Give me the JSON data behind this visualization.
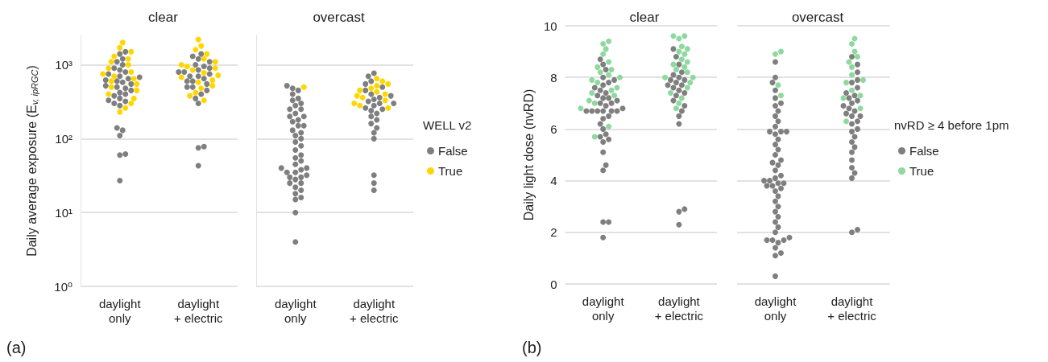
{
  "chart_data": [
    {
      "type": "scatter",
      "title": "clear",
      "ylabel": "Daily average exposure (E$_{v, ipRGC}$)",
      "categories": [
        "daylight\nonly",
        "daylight\n+ electric"
      ],
      "log": "y",
      "ylim": [
        1,
        2500
      ],
      "yticks": [
        {
          "value": 1,
          "label": "10⁰"
        },
        {
          "value": 10,
          "label": "10¹"
        },
        {
          "value": 100,
          "label": "10²"
        },
        {
          "value": 1000,
          "label": "10³"
        }
      ],
      "grid": "y",
      "marker": "circle",
      "annotations": [
        "(a)"
      ],
      "series": [
        {
          "color": "#7f7f7f",
          "x": [
            "daylight\nonly",
            "daylight\nonly",
            "daylight\nonly",
            "daylight\nonly",
            "daylight\nonly",
            "daylight\nonly",
            "daylight\nonly",
            "daylight\nonly",
            "daylight\nonly",
            "daylight\nonly",
            "daylight\nonly",
            "daylight\nonly",
            "daylight\nonly",
            "daylight\nonly",
            "daylight\nonly",
            "daylight\nonly",
            "daylight\nonly",
            "daylight\nonly",
            "daylight\nonly",
            "daylight\nonly",
            "daylight\nonly",
            "daylight\nonly",
            "daylight\nonly",
            "daylight\nonly",
            "daylight\nonly",
            "daylight\nonly",
            "daylight\nonly",
            "daylight\nonly",
            "daylight\nonly",
            "daylight\nonly",
            "daylight\nonly",
            "daylight\nonly",
            "daylight\nonly",
            "daylight\nonly",
            "daylight\n+ electric",
            "daylight\n+ electric",
            "daylight\n+ electric",
            "daylight\n+ electric",
            "daylight\n+ electric",
            "daylight\n+ electric",
            "daylight\n+ electric",
            "daylight\n+ electric",
            "daylight\n+ electric",
            "daylight\n+ electric",
            "daylight\n+ electric",
            "daylight\n+ electric",
            "daylight\n+ electric",
            "daylight\n+ electric",
            "daylight\n+ electric",
            "daylight\n+ electric",
            "daylight\n+ electric",
            "daylight\n+ electric",
            "daylight\n+ electric",
            "daylight\n+ electric",
            "daylight\n+ electric",
            "daylight\n+ electric",
            "daylight\n+ electric",
            "daylight\n+ electric",
            "daylight\n+ electric",
            "daylight\n+ electric"
          ],
          "values": [
            27,
            60,
            62,
            110,
            130,
            140,
            280,
            300,
            320,
            330,
            350,
            380,
            400,
            420,
            450,
            480,
            500,
            520,
            550,
            580,
            600,
            620,
            650,
            680,
            700,
            750,
            800,
            850,
            900,
            1000,
            1100,
            1200,
            1400,
            1500,
            43,
            75,
            78,
            300,
            350,
            400,
            450,
            500,
            550,
            600,
            650,
            700,
            750,
            800,
            850,
            900,
            950,
            1000,
            1100,
            1200,
            1300,
            1400,
            500,
            600,
            700,
            800
          ]
        },
        {
          "color": "#ffd700",
          "x": [
            "daylight\nonly",
            "daylight\nonly",
            "daylight\nonly",
            "daylight\nonly",
            "daylight\nonly",
            "daylight\nonly",
            "daylight\nonly",
            "daylight\nonly",
            "daylight\nonly",
            "daylight\nonly",
            "daylight\nonly",
            "daylight\nonly",
            "daylight\nonly",
            "daylight\nonly",
            "daylight\nonly",
            "daylight\nonly",
            "daylight\nonly",
            "daylight\nonly",
            "daylight\nonly",
            "daylight\nonly",
            "daylight\nonly",
            "daylight\n+ electric",
            "daylight\n+ electric",
            "daylight\n+ electric",
            "daylight\n+ electric",
            "daylight\n+ electric",
            "daylight\n+ electric",
            "daylight\n+ electric",
            "daylight\n+ electric",
            "daylight\n+ electric",
            "daylight\n+ electric",
            "daylight\n+ electric",
            "daylight\n+ electric",
            "daylight\n+ electric",
            "daylight\n+ electric",
            "daylight\n+ electric",
            "daylight\n+ electric",
            "daylight\n+ electric",
            "daylight\n+ electric",
            "daylight\n+ electric",
            "daylight\n+ electric"
          ],
          "values": [
            230,
            260,
            300,
            350,
            400,
            450,
            500,
            550,
            600,
            650,
            700,
            750,
            800,
            900,
            1000,
            1100,
            1200,
            1300,
            1500,
            1700,
            2000,
            330,
            380,
            420,
            480,
            520,
            580,
            620,
            680,
            720,
            780,
            850,
            900,
            950,
            1000,
            1100,
            1200,
            1400,
            1600,
            1800,
            2200
          ]
        }
      ]
    },
    {
      "type": "scatter",
      "title": "overcast",
      "categories": [
        "daylight\nonly",
        "daylight\n+ electric"
      ],
      "log": "y",
      "ylim": [
        1,
        2500
      ],
      "yticks": [
        1,
        10,
        100,
        1000
      ],
      "grid": "y",
      "marker": "circle",
      "tick_labels": "x",
      "legend": "right",
      "legend_title": "WELL v2",
      "series": [
        {
          "name": "False",
          "color": "#7f7f7f",
          "x": [
            "daylight\nonly",
            "daylight\nonly",
            "daylight\nonly",
            "daylight\nonly",
            "daylight\nonly",
            "daylight\nonly",
            "daylight\nonly",
            "daylight\nonly",
            "daylight\nonly",
            "daylight\nonly",
            "daylight\nonly",
            "daylight\nonly",
            "daylight\nonly",
            "daylight\nonly",
            "daylight\nonly",
            "daylight\nonly",
            "daylight\nonly",
            "daylight\nonly",
            "daylight\nonly",
            "daylight\nonly",
            "daylight\nonly",
            "daylight\nonly",
            "daylight\nonly",
            "daylight\nonly",
            "daylight\nonly",
            "daylight\nonly",
            "daylight\nonly",
            "daylight\nonly",
            "daylight\nonly",
            "daylight\nonly",
            "daylight\nonly",
            "daylight\nonly",
            "daylight\nonly",
            "daylight\nonly",
            "daylight\nonly",
            "daylight\nonly",
            "daylight\nonly",
            "daylight\nonly",
            "daylight\nonly",
            "daylight\nonly",
            "daylight\nonly",
            "daylight\nonly",
            "daylight\nonly",
            "daylight\nonly",
            "daylight\nonly",
            "daylight\nonly",
            "daylight\n+ electric",
            "daylight\n+ electric",
            "daylight\n+ electric",
            "daylight\n+ electric",
            "daylight\n+ electric",
            "daylight\n+ electric",
            "daylight\n+ electric",
            "daylight\n+ electric",
            "daylight\n+ electric",
            "daylight\n+ electric",
            "daylight\n+ electric",
            "daylight\n+ electric",
            "daylight\n+ electric",
            "daylight\n+ electric",
            "daylight\n+ electric",
            "daylight\n+ electric",
            "daylight\n+ electric",
            "daylight\n+ electric",
            "daylight\n+ electric",
            "daylight\n+ electric",
            "daylight\n+ electric",
            "daylight\n+ electric",
            "daylight\n+ electric",
            "daylight\n+ electric",
            "daylight\n+ electric",
            "daylight\n+ electric",
            "daylight\n+ electric"
          ],
          "values": [
            4,
            10,
            15,
            16,
            18,
            20,
            22,
            25,
            28,
            30,
            32,
            35,
            38,
            40,
            45,
            50,
            55,
            60,
            70,
            80,
            90,
            100,
            110,
            120,
            130,
            150,
            170,
            200,
            220,
            250,
            280,
            300,
            330,
            350,
            400,
            450,
            480,
            520,
            150,
            180,
            35,
            40,
            30,
            25,
            200,
            250,
            20,
            25,
            32,
            100,
            120,
            140,
            160,
            180,
            200,
            220,
            240,
            260,
            280,
            300,
            320,
            340,
            360,
            380,
            400,
            450,
            500,
            550,
            600,
            700,
            770,
            250,
            300
          ]
        },
        {
          "name": "True",
          "color": "#ffd700",
          "x": [
            "daylight\nonly",
            "daylight\n+ electric",
            "daylight\n+ electric",
            "daylight\n+ electric",
            "daylight\n+ electric",
            "daylight\n+ electric",
            "daylight\n+ electric",
            "daylight\n+ electric",
            "daylight\n+ electric",
            "daylight\n+ electric",
            "daylight\n+ electric",
            "daylight\n+ electric",
            "daylight\n+ electric",
            "daylight\n+ electric",
            "daylight\n+ electric"
          ],
          "values": [
            500,
            260,
            280,
            300,
            330,
            360,
            380,
            400,
            430,
            450,
            480,
            520,
            550,
            600,
            650
          ]
        }
      ]
    },
    {
      "type": "scatter",
      "title": "clear",
      "ylabel": "Daily light dose (nvRD)",
      "categories": [
        "daylight\nonly",
        "daylight\n+ electric"
      ],
      "ylim": [
        0,
        10
      ],
      "yticks": [
        0,
        2,
        4,
        6,
        8,
        10
      ],
      "grid": "y",
      "marker": "circle",
      "annotations": [
        "(b)"
      ],
      "series": [
        {
          "color": "#7f7f7f",
          "x": [
            "daylight\nonly",
            "daylight\nonly",
            "daylight\nonly",
            "daylight\nonly",
            "daylight\nonly",
            "daylight\nonly",
            "daylight\nonly",
            "daylight\nonly",
            "daylight\nonly",
            "daylight\nonly",
            "daylight\nonly",
            "daylight\nonly",
            "daylight\nonly",
            "daylight\nonly",
            "daylight\nonly",
            "daylight\nonly",
            "daylight\nonly",
            "daylight\nonly",
            "daylight\nonly",
            "daylight\nonly",
            "daylight\nonly",
            "daylight\nonly",
            "daylight\nonly",
            "daylight\nonly",
            "daylight\nonly",
            "daylight\nonly",
            "daylight\nonly",
            "daylight\nonly",
            "daylight\nonly",
            "daylight\nonly",
            "daylight\nonly",
            "daylight\nonly",
            "daylight\nonly",
            "daylight\nonly",
            "daylight\nonly",
            "daylight\nonly",
            "daylight\nonly",
            "daylight\nonly",
            "daylight\n+ electric",
            "daylight\n+ electric",
            "daylight\n+ electric",
            "daylight\n+ electric",
            "daylight\n+ electric",
            "daylight\n+ electric",
            "daylight\n+ electric",
            "daylight\n+ electric",
            "daylight\n+ electric",
            "daylight\n+ electric",
            "daylight\n+ electric",
            "daylight\n+ electric",
            "daylight\n+ electric",
            "daylight\n+ electric",
            "daylight\n+ electric",
            "daylight\n+ electric",
            "daylight\n+ electric",
            "daylight\n+ electric",
            "daylight\n+ electric",
            "daylight\n+ electric",
            "daylight\n+ electric",
            "daylight\n+ electric",
            "daylight\n+ electric"
          ],
          "values": [
            1.8,
            2.4,
            2.4,
            4.4,
            4.6,
            5.1,
            5.5,
            5.6,
            5.7,
            5.8,
            6.0,
            6.2,
            6.4,
            6.5,
            6.7,
            6.7,
            6.7,
            6.7,
            6.7,
            6.7,
            6.9,
            7.0,
            7.1,
            7.2,
            7.3,
            7.4,
            7.5,
            7.6,
            7.7,
            7.8,
            7.9,
            8.0,
            8.3,
            8.5,
            8.7,
            7.0,
            6.8,
            7.2,
            2.3,
            2.8,
            2.9,
            6.2,
            6.5,
            6.7,
            6.9,
            7.1,
            7.3,
            7.4,
            7.5,
            7.6,
            7.7,
            7.8,
            7.9,
            8.0,
            8.2,
            8.5,
            8.8,
            9.1,
            7.7,
            7.9,
            8.1
          ]
        },
        {
          "color": "#8fd89e",
          "x": [
            "daylight\nonly",
            "daylight\nonly",
            "daylight\nonly",
            "daylight\nonly",
            "daylight\nonly",
            "daylight\nonly",
            "daylight\nonly",
            "daylight\nonly",
            "daylight\nonly",
            "daylight\nonly",
            "daylight\nonly",
            "daylight\nonly",
            "daylight\nonly",
            "daylight\nonly",
            "daylight\nonly",
            "daylight\nonly",
            "daylight\nonly",
            "daylight\nonly",
            "daylight\nonly",
            "daylight\nonly",
            "daylight\nonly",
            "daylight\n+ electric",
            "daylight\n+ electric",
            "daylight\n+ electric",
            "daylight\n+ electric",
            "daylight\n+ electric",
            "daylight\n+ electric",
            "daylight\n+ electric",
            "daylight\n+ electric",
            "daylight\n+ electric",
            "daylight\n+ electric",
            "daylight\n+ electric",
            "daylight\n+ electric",
            "daylight\n+ electric",
            "daylight\n+ electric",
            "daylight\n+ electric",
            "daylight\n+ electric",
            "daylight\n+ electric",
            "daylight\n+ electric",
            "daylight\n+ electric",
            "daylight\n+ electric",
            "daylight\n+ electric"
          ],
          "values": [
            5.7,
            6.1,
            6.8,
            7.0,
            7.1,
            7.3,
            7.5,
            7.6,
            7.8,
            8.0,
            8.1,
            8.2,
            8.3,
            8.4,
            8.6,
            8.9,
            9.1,
            9.3,
            9.4,
            7.9,
            7.4,
            6.8,
            7.0,
            7.2,
            7.4,
            7.6,
            7.8,
            8.0,
            8.2,
            8.3,
            8.5,
            8.6,
            8.7,
            8.9,
            9.0,
            9.1,
            9.2,
            9.5,
            9.6,
            9.6,
            8.0,
            8.4
          ]
        }
      ]
    },
    {
      "type": "scatter",
      "title": "overcast",
      "categories": [
        "daylight\nonly",
        "daylight\n+ electric"
      ],
      "ylim": [
        0,
        10
      ],
      "yticks": [
        0,
        2,
        4,
        6,
        8,
        10
      ],
      "grid": "y",
      "marker": "circle",
      "tick_labels": "x",
      "legend": "right",
      "legend_title": "nvRD ≥ 4 before 1pm",
      "series": [
        {
          "name": "False",
          "color": "#7f7f7f",
          "x": [
            "daylight\nonly",
            "daylight\nonly",
            "daylight\nonly",
            "daylight\nonly",
            "daylight\nonly",
            "daylight\nonly",
            "daylight\nonly",
            "daylight\nonly",
            "daylight\nonly",
            "daylight\nonly",
            "daylight\nonly",
            "daylight\nonly",
            "daylight\nonly",
            "daylight\nonly",
            "daylight\nonly",
            "daylight\nonly",
            "daylight\nonly",
            "daylight\nonly",
            "daylight\nonly",
            "daylight\nonly",
            "daylight\nonly",
            "daylight\nonly",
            "daylight\nonly",
            "daylight\nonly",
            "daylight\nonly",
            "daylight\nonly",
            "daylight\nonly",
            "daylight\nonly",
            "daylight\nonly",
            "daylight\nonly",
            "daylight\nonly",
            "daylight\nonly",
            "daylight\nonly",
            "daylight\nonly",
            "daylight\nonly",
            "daylight\nonly",
            "daylight\nonly",
            "daylight\nonly",
            "daylight\nonly",
            "daylight\nonly",
            "daylight\nonly",
            "daylight\nonly",
            "daylight\nonly",
            "daylight\nonly",
            "daylight\nonly",
            "daylight\nonly",
            "daylight\nonly",
            "daylight\nonly",
            "daylight\nonly",
            "daylight\nonly",
            "daylight\n+ electric",
            "daylight\n+ electric",
            "daylight\n+ electric",
            "daylight\n+ electric",
            "daylight\n+ electric",
            "daylight\n+ electric",
            "daylight\n+ electric",
            "daylight\n+ electric",
            "daylight\n+ electric",
            "daylight\n+ electric",
            "daylight\n+ electric",
            "daylight\n+ electric",
            "daylight\n+ electric",
            "daylight\n+ electric",
            "daylight\n+ electric",
            "daylight\n+ electric",
            "daylight\n+ electric",
            "daylight\n+ electric",
            "daylight\n+ electric",
            "daylight\n+ electric",
            "daylight\n+ electric",
            "daylight\n+ electric",
            "daylight\n+ electric",
            "daylight\n+ electric",
            "daylight\n+ electric",
            "daylight\n+ electric",
            "daylight\n+ electric",
            "daylight\n+ electric",
            "daylight\n+ electric",
            "daylight\n+ electric",
            "daylight\n+ electric"
          ],
          "values": [
            0.3,
            1.1,
            1.2,
            1.4,
            1.6,
            1.7,
            1.7,
            1.7,
            1.8,
            2.0,
            2.2,
            2.4,
            2.6,
            2.8,
            3.0,
            3.2,
            3.4,
            3.6,
            3.7,
            3.8,
            3.9,
            4.0,
            4.1,
            4.2,
            4.4,
            4.6,
            4.8,
            5.0,
            5.2,
            5.4,
            5.6,
            5.8,
            5.9,
            5.9,
            5.9,
            6.1,
            6.3,
            6.5,
            6.7,
            6.9,
            7.0,
            7.2,
            7.5,
            7.8,
            8.0,
            8.6,
            3.8,
            3.9,
            4.0,
            4.7,
            2.0,
            2.1,
            4.1,
            4.3,
            4.5,
            4.8,
            5.1,
            5.3,
            5.5,
            5.7,
            5.9,
            6.0,
            6.2,
            6.3,
            6.5,
            6.6,
            6.7,
            6.8,
            7.0,
            7.1,
            7.2,
            7.4,
            7.6,
            7.8,
            7.9,
            8.2,
            8.5,
            8.8,
            6.5,
            6.9,
            7.3
          ]
        },
        {
          "name": "True",
          "color": "#8fd89e",
          "x": [
            "daylight\nonly",
            "daylight\nonly",
            "daylight\nonly",
            "daylight\nonly",
            "daylight\n+ electric",
            "daylight\n+ electric",
            "daylight\n+ electric",
            "daylight\n+ electric",
            "daylight\n+ electric",
            "daylight\n+ electric",
            "daylight\n+ electric",
            "daylight\n+ electric",
            "daylight\n+ electric",
            "daylight\n+ electric",
            "daylight\n+ electric",
            "daylight\n+ electric",
            "daylight\n+ electric",
            "daylight\n+ electric"
          ],
          "values": [
            7.3,
            7.7,
            9.0,
            8.9,
            6.3,
            6.8,
            7.2,
            7.5,
            7.8,
            8.1,
            8.4,
            8.6,
            8.8,
            9.0,
            9.3,
            9.5,
            7.3,
            7.9
          ]
        }
      ]
    }
  ]
}
